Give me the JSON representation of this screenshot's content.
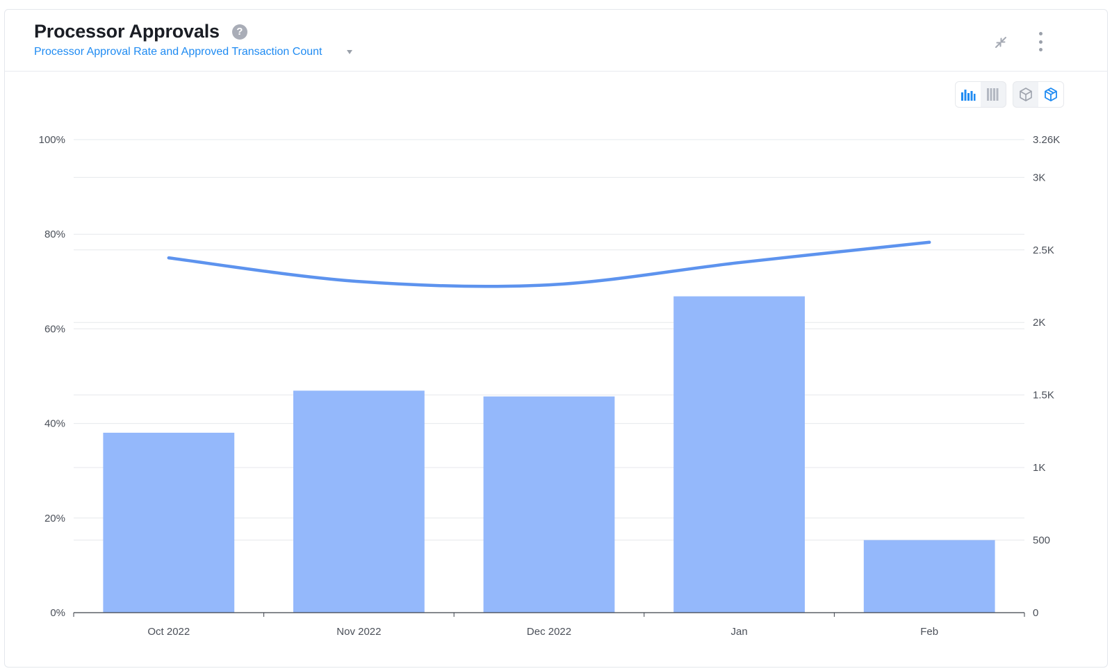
{
  "header": {
    "title": "Processor Approvals",
    "help_icon": "question-circle-icon",
    "subtitle": "Processor Approval Rate and Approved Transaction Count",
    "subtitle_dropdown_icon": "caret-down-icon",
    "collapse_icon": "collapse-arrows-icon",
    "menu_icon": "vertical-ellipsis-icon"
  },
  "toolbar": {
    "chart_type_toggle": [
      {
        "icon": "grouped-bar-chart-icon",
        "active": true
      },
      {
        "icon": "stacked-bar-chart-icon",
        "active": false
      }
    ],
    "view_mode_toggle": [
      {
        "icon": "cube-outline-icon",
        "active": false
      },
      {
        "icon": "cube-3d-icon",
        "active": true
      }
    ]
  },
  "colors": {
    "bar": "#94b8fb",
    "line": "#5d93ee",
    "accent": "#1f8bf2",
    "grid": "#e6e8ec",
    "axis": "#4a4f58"
  },
  "chart_data": {
    "type": "bar",
    "categories": [
      "Oct 2022",
      "Nov 2022",
      "Dec 2022",
      "Jan",
      "Feb"
    ],
    "series": [
      {
        "type": "bar",
        "axis": "right",
        "values": [
          1240,
          1530,
          1490,
          2180,
          500
        ]
      },
      {
        "type": "line",
        "axis": "left",
        "values": [
          75,
          70,
          69.3,
          74,
          78.3
        ]
      }
    ],
    "y_left": {
      "ticks": [
        "0%",
        "20%",
        "40%",
        "60%",
        "80%",
        "100%"
      ],
      "tick_values": [
        0,
        20,
        40,
        60,
        80,
        100
      ],
      "range": [
        0,
        100
      ]
    },
    "y_right": {
      "ticks": [
        "0",
        "500",
        "1K",
        "1.5K",
        "2K",
        "2.5K",
        "3K",
        "3.26K"
      ],
      "tick_values": [
        0,
        500,
        1000,
        1500,
        2000,
        2500,
        3000,
        3260
      ],
      "range": [
        0,
        3260
      ]
    },
    "grid": true,
    "legend": "none"
  }
}
